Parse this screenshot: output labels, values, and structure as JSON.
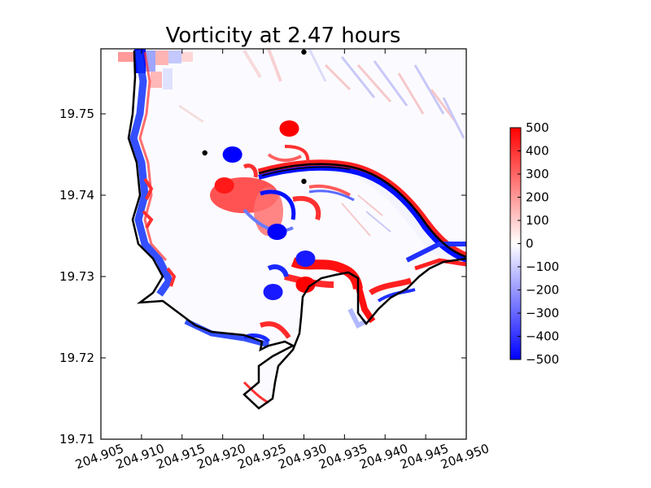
{
  "chart_data": {
    "type": "heatmap",
    "title": "Vorticity at 2.47 hours",
    "xlabel": "",
    "ylabel": "",
    "xlim": [
      204.905,
      204.95
    ],
    "ylim": [
      19.71,
      19.758
    ],
    "x_ticks": [
      "204.905",
      "204.910",
      "204.915",
      "204.920",
      "204.925",
      "204.930",
      "204.935",
      "204.940",
      "204.945",
      "204.950"
    ],
    "y_ticks": [
      "19.71",
      "19.72",
      "19.73",
      "19.74",
      "19.75"
    ],
    "x_tick_values": [
      204.905,
      204.91,
      204.915,
      204.92,
      204.925,
      204.93,
      204.935,
      204.94,
      204.945,
      204.95
    ],
    "y_tick_values": [
      19.71,
      19.72,
      19.73,
      19.74,
      19.75
    ],
    "grid": false,
    "colorbar": {
      "range": [
        -500,
        500
      ],
      "ticks": [
        500,
        400,
        300,
        200,
        100,
        0,
        -100,
        -200,
        -300,
        -400,
        -500
      ],
      "tick_labels": [
        "500",
        "400",
        "300",
        "200",
        "100",
        "0",
        "−100",
        "−200",
        "−300",
        "−400",
        "−500"
      ],
      "colormap": "bwr",
      "colors": {
        "low": "#0000ff",
        "mid": "#ffffff",
        "high": "#ff0000"
      }
    },
    "gauge_points": [
      {
        "x": 204.93,
        "y": 19.7576
      },
      {
        "x": 204.9178,
        "y": 19.7452
      },
      {
        "x": 204.93,
        "y": 19.7417
      }
    ],
    "vortex_features": [
      {
        "x": 204.9282,
        "y": 19.7482,
        "vorticity": 500
      },
      {
        "x": 204.9212,
        "y": 19.745,
        "vorticity": -500
      },
      {
        "x": 204.9267,
        "y": 19.7355,
        "vorticity": -500
      },
      {
        "x": 204.9302,
        "y": 19.7322,
        "vorticity": -450
      },
      {
        "x": 204.9262,
        "y": 19.7281,
        "vorticity": -450
      },
      {
        "x": 204.9202,
        "y": 19.7412,
        "vorticity": 450
      },
      {
        "x": 204.9302,
        "y": 19.729,
        "vorticity": 500
      }
    ],
    "coastline_color": "#000000"
  }
}
